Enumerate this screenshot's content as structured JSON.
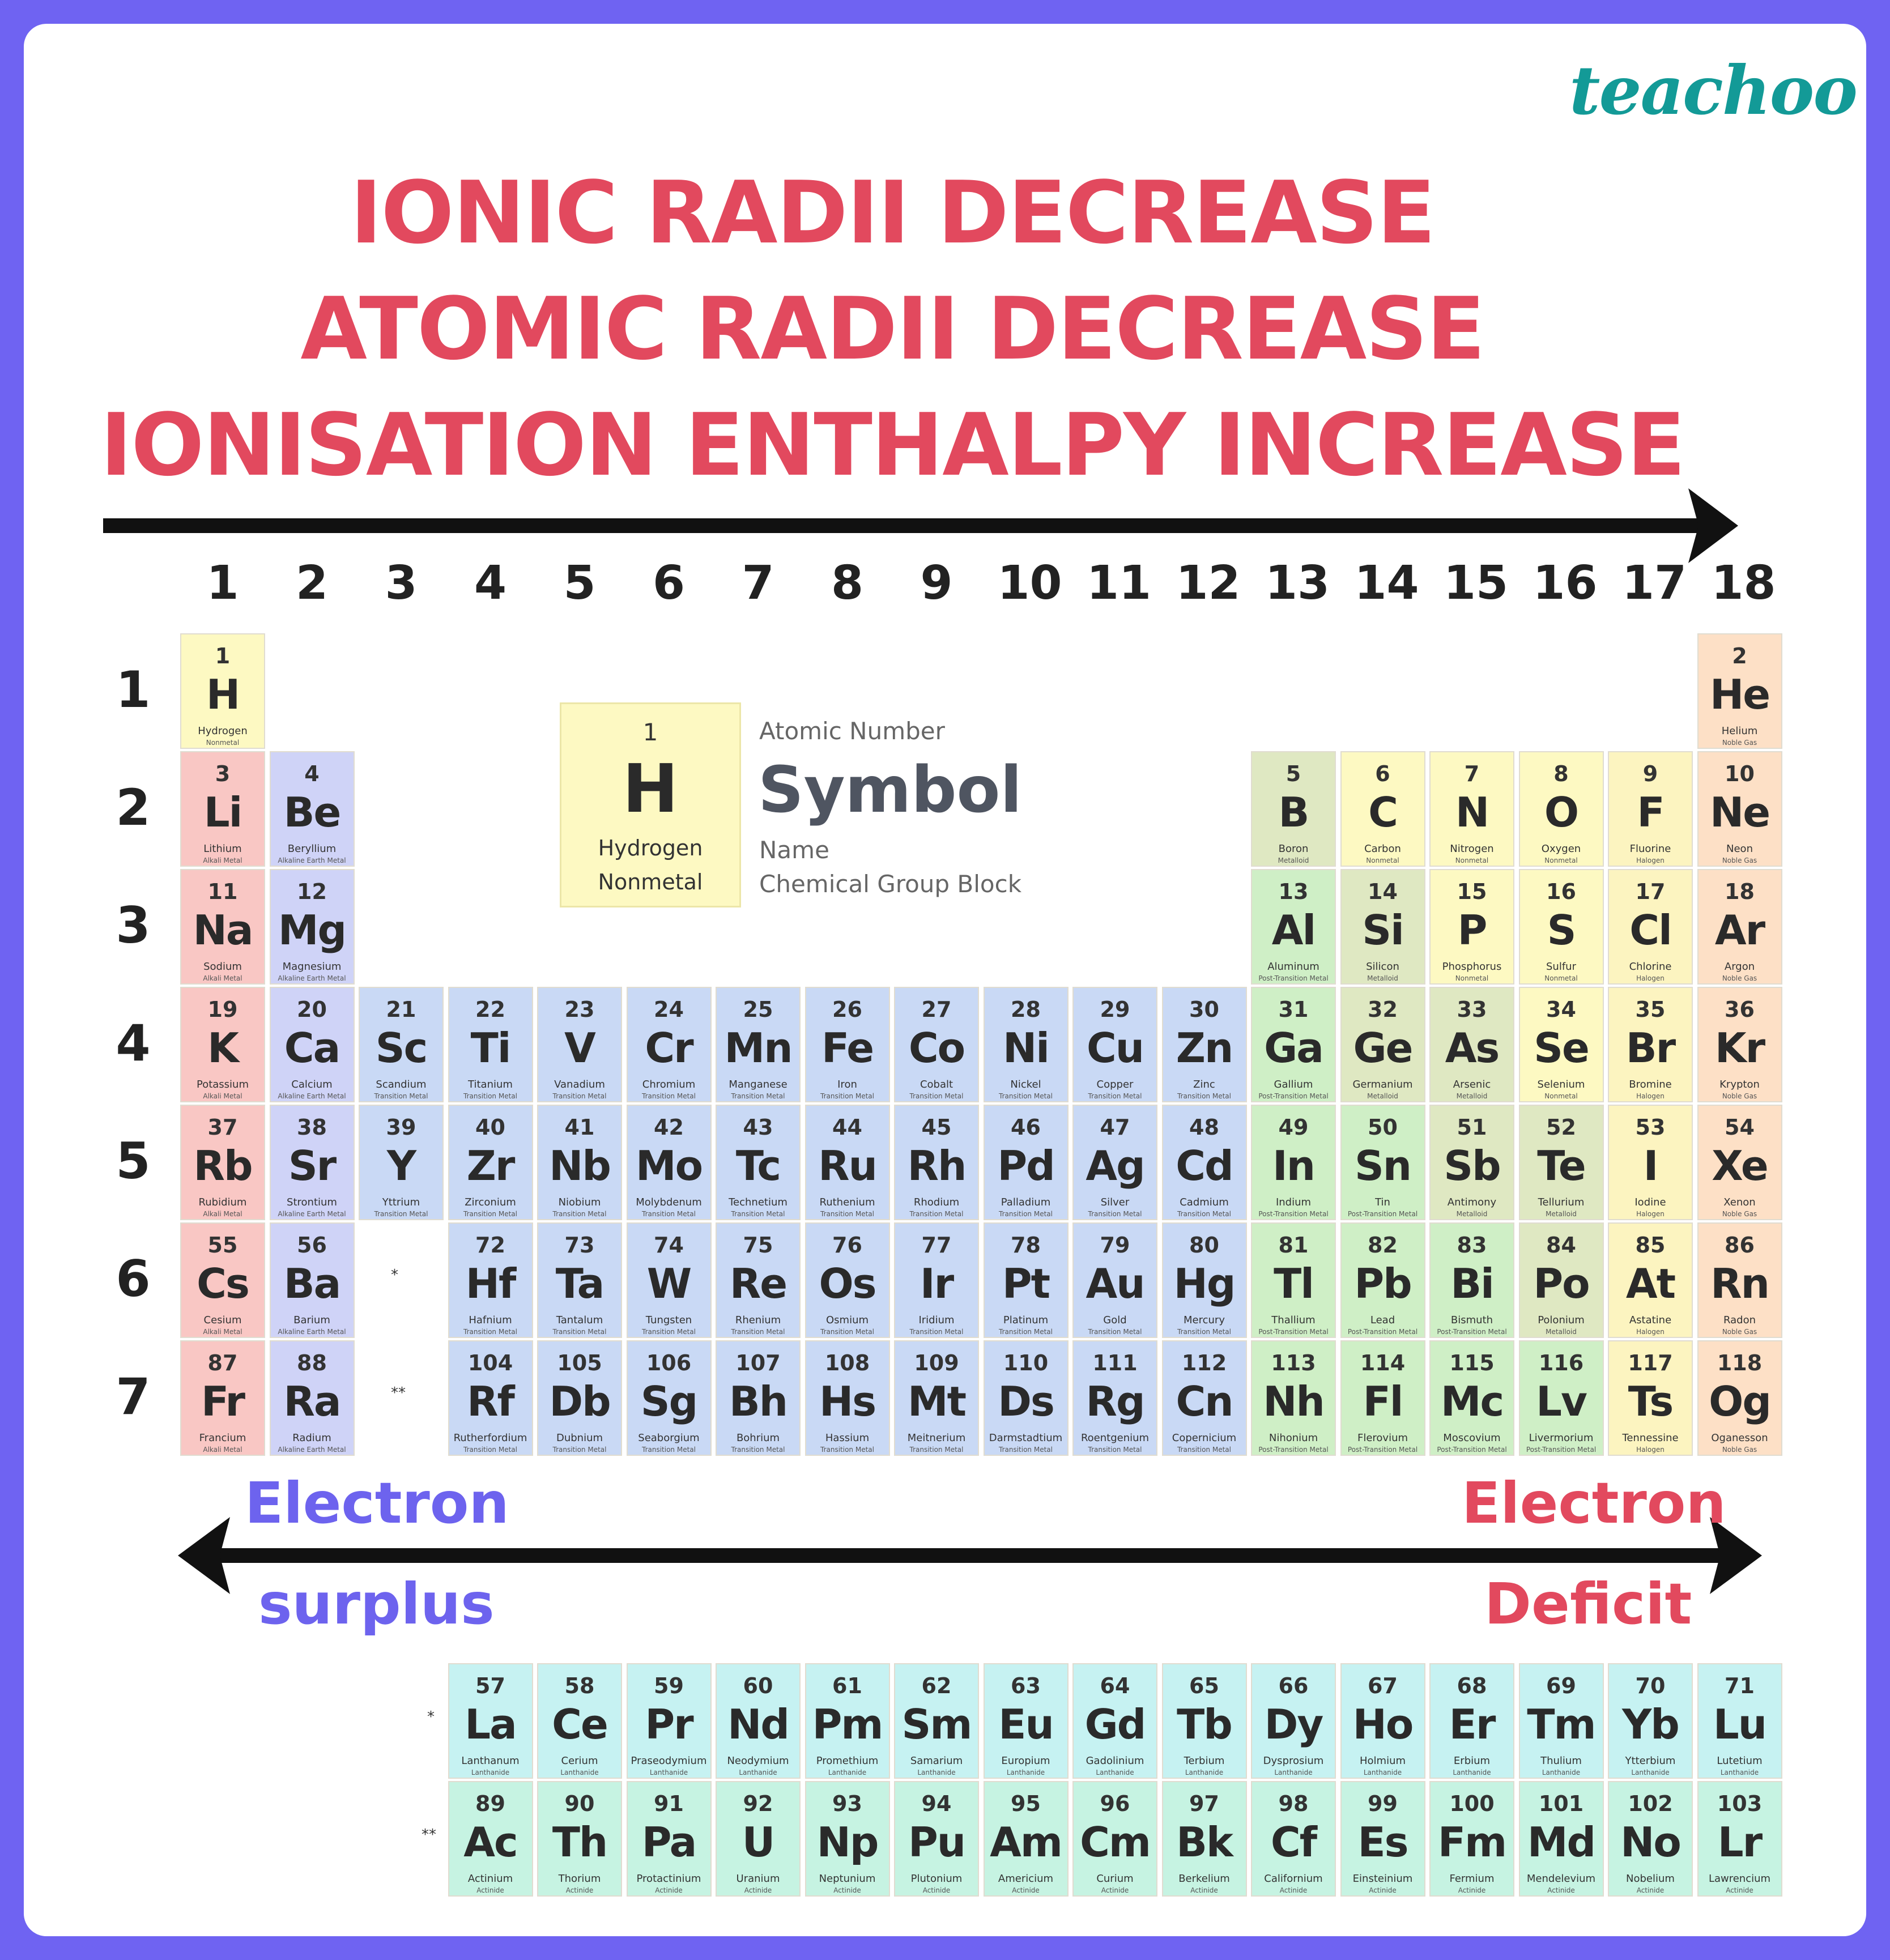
{
  "brand": "teachoo",
  "trends": [
    "IONIC RADII DECREASE",
    "ATOMIC RADII DECREASE",
    "IONISATION ENTHALPY INCREASE"
  ],
  "group_numbers": [
    "1",
    "2",
    "3",
    "4",
    "5",
    "6",
    "7",
    "8",
    "9",
    "10",
    "11",
    "12",
    "13",
    "14",
    "15",
    "16",
    "17",
    "18"
  ],
  "period_numbers": [
    "1",
    "2",
    "3",
    "4",
    "5",
    "6",
    "7"
  ],
  "legend": {
    "number": "1",
    "symbol": "H",
    "name": "Hydrogen",
    "category": "Nonmetal",
    "label_number": "Atomic Number",
    "label_symbol": "Symbol",
    "label_name": "Name",
    "label_category": "Chemical Group Block"
  },
  "electron_left": [
    "Electron",
    "surplus"
  ],
  "electron_right": [
    "Electron",
    "Deficit"
  ],
  "placeholders": [
    "*",
    "**"
  ],
  "category_colors": {
    "Nonmetal": "#fdf9c2",
    "Noble Gas": "#fde0c6",
    "Alkali Metal": "#f9c7c4",
    "Alkaline Earth Metal": "#cfd3f7",
    "Transition Metal": "#c9d9f5",
    "Metalloid": "#dfe8c2",
    "Post-Transition Metal": "#cfefc6",
    "Halogen": "#fcf4c0",
    "Lanthanide": "#c6f2f2",
    "Actinide": "#c6f3e2"
  },
  "elements": [
    [
      "1",
      "H",
      "Hydrogen",
      "Nonmetal",
      1,
      1
    ],
    [
      "2",
      "He",
      "Helium",
      "Noble Gas",
      1,
      18
    ],
    [
      "3",
      "Li",
      "Lithium",
      "Alkali Metal",
      2,
      1
    ],
    [
      "4",
      "Be",
      "Beryllium",
      "Alkaline Earth Metal",
      2,
      2
    ],
    [
      "5",
      "B",
      "Boron",
      "Metalloid",
      2,
      13
    ],
    [
      "6",
      "C",
      "Carbon",
      "Nonmetal",
      2,
      14
    ],
    [
      "7",
      "N",
      "Nitrogen",
      "Nonmetal",
      2,
      15
    ],
    [
      "8",
      "O",
      "Oxygen",
      "Nonmetal",
      2,
      16
    ],
    [
      "9",
      "F",
      "Fluorine",
      "Halogen",
      2,
      17
    ],
    [
      "10",
      "Ne",
      "Neon",
      "Noble Gas",
      2,
      18
    ],
    [
      "11",
      "Na",
      "Sodium",
      "Alkali Metal",
      3,
      1
    ],
    [
      "12",
      "Mg",
      "Magnesium",
      "Alkaline Earth Metal",
      3,
      2
    ],
    [
      "13",
      "Al",
      "Aluminum",
      "Post-Transition Metal",
      3,
      13
    ],
    [
      "14",
      "Si",
      "Silicon",
      "Metalloid",
      3,
      14
    ],
    [
      "15",
      "P",
      "Phosphorus",
      "Nonmetal",
      3,
      15
    ],
    [
      "16",
      "S",
      "Sulfur",
      "Nonmetal",
      3,
      16
    ],
    [
      "17",
      "Cl",
      "Chlorine",
      "Halogen",
      3,
      17
    ],
    [
      "18",
      "Ar",
      "Argon",
      "Noble Gas",
      3,
      18
    ],
    [
      "19",
      "K",
      "Potassium",
      "Alkali Metal",
      4,
      1
    ],
    [
      "20",
      "Ca",
      "Calcium",
      "Alkaline Earth Metal",
      4,
      2
    ],
    [
      "21",
      "Sc",
      "Scandium",
      "Transition Metal",
      4,
      3
    ],
    [
      "22",
      "Ti",
      "Titanium",
      "Transition Metal",
      4,
      4
    ],
    [
      "23",
      "V",
      "Vanadium",
      "Transition Metal",
      4,
      5
    ],
    [
      "24",
      "Cr",
      "Chromium",
      "Transition Metal",
      4,
      6
    ],
    [
      "25",
      "Mn",
      "Manganese",
      "Transition Metal",
      4,
      7
    ],
    [
      "26",
      "Fe",
      "Iron",
      "Transition Metal",
      4,
      8
    ],
    [
      "27",
      "Co",
      "Cobalt",
      "Transition Metal",
      4,
      9
    ],
    [
      "28",
      "Ni",
      "Nickel",
      "Transition Metal",
      4,
      10
    ],
    [
      "29",
      "Cu",
      "Copper",
      "Transition Metal",
      4,
      11
    ],
    [
      "30",
      "Zn",
      "Zinc",
      "Transition Metal",
      4,
      12
    ],
    [
      "31",
      "Ga",
      "Gallium",
      "Post-Transition Metal",
      4,
      13
    ],
    [
      "32",
      "Ge",
      "Germanium",
      "Metalloid",
      4,
      14
    ],
    [
      "33",
      "As",
      "Arsenic",
      "Metalloid",
      4,
      15
    ],
    [
      "34",
      "Se",
      "Selenium",
      "Nonmetal",
      4,
      16
    ],
    [
      "35",
      "Br",
      "Bromine",
      "Halogen",
      4,
      17
    ],
    [
      "36",
      "Kr",
      "Krypton",
      "Noble Gas",
      4,
      18
    ],
    [
      "37",
      "Rb",
      "Rubidium",
      "Alkali Metal",
      5,
      1
    ],
    [
      "38",
      "Sr",
      "Strontium",
      "Alkaline Earth Metal",
      5,
      2
    ],
    [
      "39",
      "Y",
      "Yttrium",
      "Transition Metal",
      5,
      3
    ],
    [
      "40",
      "Zr",
      "Zirconium",
      "Transition Metal",
      5,
      4
    ],
    [
      "41",
      "Nb",
      "Niobium",
      "Transition Metal",
      5,
      5
    ],
    [
      "42",
      "Mo",
      "Molybdenum",
      "Transition Metal",
      5,
      6
    ],
    [
      "43",
      "Tc",
      "Technetium",
      "Transition Metal",
      5,
      7
    ],
    [
      "44",
      "Ru",
      "Ruthenium",
      "Transition Metal",
      5,
      8
    ],
    [
      "45",
      "Rh",
      "Rhodium",
      "Transition Metal",
      5,
      9
    ],
    [
      "46",
      "Pd",
      "Palladium",
      "Transition Metal",
      5,
      10
    ],
    [
      "47",
      "Ag",
      "Silver",
      "Transition Metal",
      5,
      11
    ],
    [
      "48",
      "Cd",
      "Cadmium",
      "Transition Metal",
      5,
      12
    ],
    [
      "49",
      "In",
      "Indium",
      "Post-Transition Metal",
      5,
      13
    ],
    [
      "50",
      "Sn",
      "Tin",
      "Post-Transition Metal",
      5,
      14
    ],
    [
      "51",
      "Sb",
      "Antimony",
      "Metalloid",
      5,
      15
    ],
    [
      "52",
      "Te",
      "Tellurium",
      "Metalloid",
      5,
      16
    ],
    [
      "53",
      "I",
      "Iodine",
      "Halogen",
      5,
      17
    ],
    [
      "54",
      "Xe",
      "Xenon",
      "Noble Gas",
      5,
      18
    ],
    [
      "55",
      "Cs",
      "Cesium",
      "Alkali Metal",
      6,
      1
    ],
    [
      "56",
      "Ba",
      "Barium",
      "Alkaline Earth Metal",
      6,
      2
    ],
    [
      "72",
      "Hf",
      "Hafnium",
      "Transition Metal",
      6,
      4
    ],
    [
      "73",
      "Ta",
      "Tantalum",
      "Transition Metal",
      6,
      5
    ],
    [
      "74",
      "W",
      "Tungsten",
      "Transition Metal",
      6,
      6
    ],
    [
      "75",
      "Re",
      "Rhenium",
      "Transition Metal",
      6,
      7
    ],
    [
      "76",
      "Os",
      "Osmium",
      "Transition Metal",
      6,
      8
    ],
    [
      "77",
      "Ir",
      "Iridium",
      "Transition Metal",
      6,
      9
    ],
    [
      "78",
      "Pt",
      "Platinum",
      "Transition Metal",
      6,
      10
    ],
    [
      "79",
      "Au",
      "Gold",
      "Transition Metal",
      6,
      11
    ],
    [
      "80",
      "Hg",
      "Mercury",
      "Transition Metal",
      6,
      12
    ],
    [
      "81",
      "Tl",
      "Thallium",
      "Post-Transition Metal",
      6,
      13
    ],
    [
      "82",
      "Pb",
      "Lead",
      "Post-Transition Metal",
      6,
      14
    ],
    [
      "83",
      "Bi",
      "Bismuth",
      "Post-Transition Metal",
      6,
      15
    ],
    [
      "84",
      "Po",
      "Polonium",
      "Metalloid",
      6,
      16
    ],
    [
      "85",
      "At",
      "Astatine",
      "Halogen",
      6,
      17
    ],
    [
      "86",
      "Rn",
      "Radon",
      "Noble Gas",
      6,
      18
    ],
    [
      "87",
      "Fr",
      "Francium",
      "Alkali Metal",
      7,
      1
    ],
    [
      "88",
      "Ra",
      "Radium",
      "Alkaline Earth Metal",
      7,
      2
    ],
    [
      "104",
      "Rf",
      "Rutherfordium",
      "Transition Metal",
      7,
      4
    ],
    [
      "105",
      "Db",
      "Dubnium",
      "Transition Metal",
      7,
      5
    ],
    [
      "106",
      "Sg",
      "Seaborgium",
      "Transition Metal",
      7,
      6
    ],
    [
      "107",
      "Bh",
      "Bohrium",
      "Transition Metal",
      7,
      7
    ],
    [
      "108",
      "Hs",
      "Hassium",
      "Transition Metal",
      7,
      8
    ],
    [
      "109",
      "Mt",
      "Meitnerium",
      "Transition Metal",
      7,
      9
    ],
    [
      "110",
      "Ds",
      "Darmstadtium",
      "Transition Metal",
      7,
      10
    ],
    [
      "111",
      "Rg",
      "Roentgenium",
      "Transition Metal",
      7,
      11
    ],
    [
      "112",
      "Cn",
      "Copernicium",
      "Transition Metal",
      7,
      12
    ],
    [
      "113",
      "Nh",
      "Nihonium",
      "Post-Transition Metal",
      7,
      13
    ],
    [
      "114",
      "Fl",
      "Flerovium",
      "Post-Transition Metal",
      7,
      14
    ],
    [
      "115",
      "Mc",
      "Moscovium",
      "Post-Transition Metal",
      7,
      15
    ],
    [
      "116",
      "Lv",
      "Livermorium",
      "Post-Transition Metal",
      7,
      16
    ],
    [
      "117",
      "Ts",
      "Tennessine",
      "Halogen",
      7,
      17
    ],
    [
      "118",
      "Og",
      "Oganesson",
      "Noble Gas",
      7,
      18
    ],
    [
      "57",
      "La",
      "Lanthanum",
      "Lanthanide",
      9,
      4
    ],
    [
      "58",
      "Ce",
      "Cerium",
      "Lanthanide",
      9,
      5
    ],
    [
      "59",
      "Pr",
      "Praseodymium",
      "Lanthanide",
      9,
      6
    ],
    [
      "60",
      "Nd",
      "Neodymium",
      "Lanthanide",
      9,
      7
    ],
    [
      "61",
      "Pm",
      "Promethium",
      "Lanthanide",
      9,
      8
    ],
    [
      "62",
      "Sm",
      "Samarium",
      "Lanthanide",
      9,
      9
    ],
    [
      "63",
      "Eu",
      "Europium",
      "Lanthanide",
      9,
      10
    ],
    [
      "64",
      "Gd",
      "Gadolinium",
      "Lanthanide",
      9,
      11
    ],
    [
      "65",
      "Tb",
      "Terbium",
      "Lanthanide",
      9,
      12
    ],
    [
      "66",
      "Dy",
      "Dysprosium",
      "Lanthanide",
      9,
      13
    ],
    [
      "67",
      "Ho",
      "Holmium",
      "Lanthanide",
      9,
      14
    ],
    [
      "68",
      "Er",
      "Erbium",
      "Lanthanide",
      9,
      15
    ],
    [
      "69",
      "Tm",
      "Thulium",
      "Lanthanide",
      9,
      16
    ],
    [
      "70",
      "Yb",
      "Ytterbium",
      "Lanthanide",
      9,
      17
    ],
    [
      "71",
      "Lu",
      "Lutetium",
      "Lanthanide",
      9,
      18
    ],
    [
      "89",
      "Ac",
      "Actinium",
      "Actinide",
      10,
      4
    ],
    [
      "90",
      "Th",
      "Thorium",
      "Actinide",
      10,
      5
    ],
    [
      "91",
      "Pa",
      "Protactinium",
      "Actinide",
      10,
      6
    ],
    [
      "92",
      "U",
      "Uranium",
      "Actinide",
      10,
      7
    ],
    [
      "93",
      "Np",
      "Neptunium",
      "Actinide",
      10,
      8
    ],
    [
      "94",
      "Pu",
      "Plutonium",
      "Actinide",
      10,
      9
    ],
    [
      "95",
      "Am",
      "Americium",
      "Actinide",
      10,
      10
    ],
    [
      "96",
      "Cm",
      "Curium",
      "Actinide",
      10,
      11
    ],
    [
      "97",
      "Bk",
      "Berkelium",
      "Actinide",
      10,
      12
    ],
    [
      "98",
      "Cf",
      "Californium",
      "Actinide",
      10,
      13
    ],
    [
      "99",
      "Es",
      "Einsteinium",
      "Actinide",
      10,
      14
    ],
    [
      "100",
      "Fm",
      "Fermium",
      "Actinide",
      10,
      15
    ],
    [
      "101",
      "Md",
      "Mendelevium",
      "Actinide",
      10,
      16
    ],
    [
      "102",
      "No",
      "Nobelium",
      "Actinide",
      10,
      17
    ],
    [
      "103",
      "Lr",
      "Lawrencium",
      "Actinide",
      10,
      18
    ]
  ]
}
